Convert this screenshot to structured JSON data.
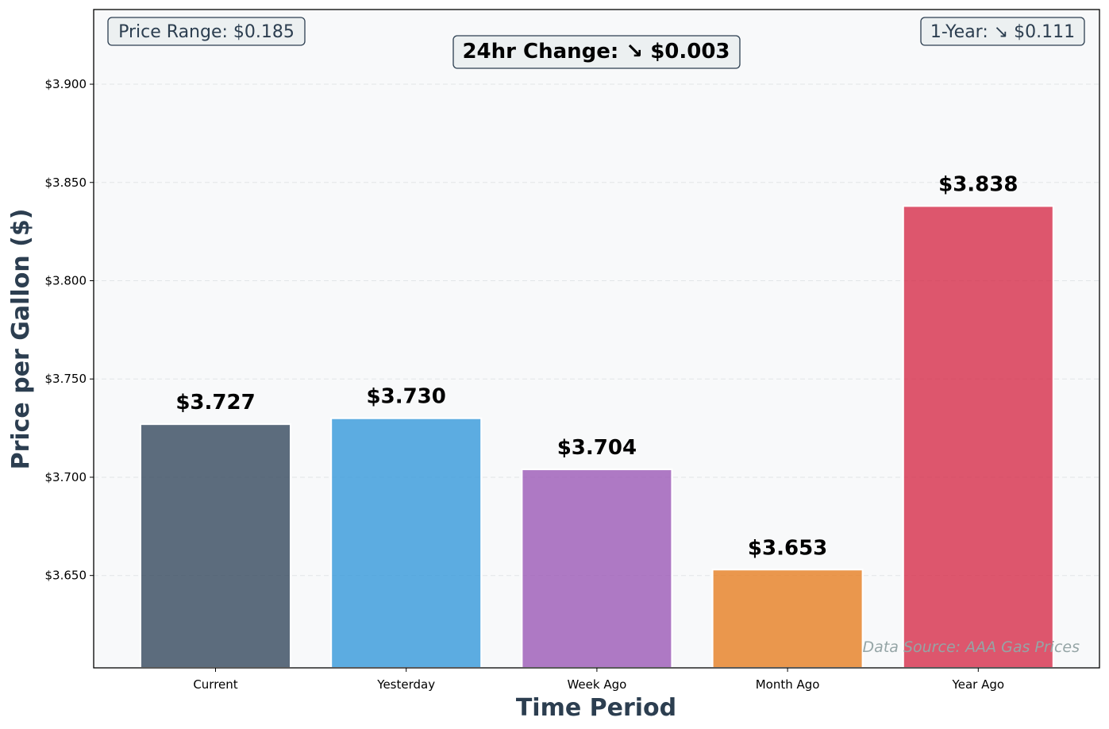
{
  "chart_data": {
    "type": "bar",
    "categories": [
      "Current",
      "Yesterday",
      "Week Ago",
      "Month Ago",
      "Year Ago"
    ],
    "values": [
      3.727,
      3.73,
      3.704,
      3.653,
      3.838
    ],
    "value_labels": [
      "$3.727",
      "$3.730",
      "$3.704",
      "$3.653",
      "$3.838"
    ],
    "colors": [
      "#34495e",
      "#3498db",
      "#9b59b6",
      "#e67e22",
      "#d62d4a"
    ],
    "xlabel": "Time Period",
    "ylabel": "Price per Gallon ($)",
    "ylim": [
      3.603,
      3.938
    ],
    "yticks": [
      3.65,
      3.7,
      3.75,
      3.8,
      3.85,
      3.9
    ],
    "ytick_labels": [
      "$3.650",
      "$3.700",
      "$3.750",
      "$3.800",
      "$3.850",
      "$3.900"
    ],
    "grid": "y-dashed",
    "background": "#f8f9fa"
  },
  "annotations": {
    "price_range": "Price Range: $0.185",
    "change_24hr": "24hr Change: ↘ $0.003",
    "one_year": "1-Year: ↘ $0.111",
    "source": "Data Source: AAA Gas Prices"
  }
}
